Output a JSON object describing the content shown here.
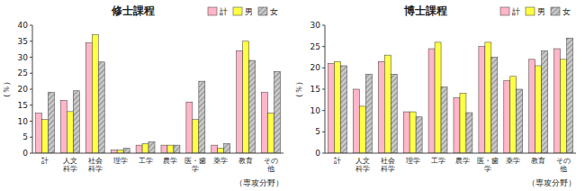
{
  "chart_data": [
    {
      "type": "bar",
      "title": "修士課程",
      "y_label": "（％）",
      "x_label": "（専攻分野）",
      "categories": [
        "計",
        "人文\n科学",
        "社会\n科学",
        "理学",
        "工学",
        "農学",
        "医・歯\n学",
        "薬学",
        "教育",
        "その\n他"
      ],
      "series": [
        {
          "name": "計",
          "color": "#FFB6C8",
          "values": [
            12.5,
            16.5,
            34.5,
            1.0,
            2.5,
            2.5,
            16.0,
            2.5,
            32.0,
            19.0
          ]
        },
        {
          "name": "男",
          "color": "#FFFF44",
          "values": [
            10.5,
            13.0,
            37.0,
            1.0,
            3.0,
            2.5,
            10.5,
            1.5,
            35.0,
            12.5
          ]
        },
        {
          "name": "女",
          "color": "#C8C8C8",
          "values": [
            19.0,
            19.5,
            28.5,
            1.5,
            3.5,
            2.5,
            22.5,
            3.0,
            29.0,
            25.5
          ]
        }
      ],
      "ylim": [
        0,
        40
      ],
      "yticks": [
        0,
        5,
        10,
        15,
        20,
        25,
        30,
        35,
        40
      ],
      "legend": "upper right"
    },
    {
      "type": "bar",
      "title": "博士課程",
      "y_label": "（％）",
      "x_label": "（専攻分野）",
      "categories": [
        "計",
        "人文\n科学",
        "社会\n科学",
        "理学",
        "工学",
        "農学",
        "医・歯\n学",
        "薬学",
        "教育",
        "その\n他"
      ],
      "series": [
        {
          "name": "計",
          "color": "#FFB6C8",
          "values": [
            21.0,
            15.0,
            21.5,
            9.7,
            24.5,
            13.0,
            25.0,
            17.0,
            22.0,
            24.5
          ]
        },
        {
          "name": "男",
          "color": "#FFFF44",
          "values": [
            21.5,
            11.0,
            23.0,
            9.7,
            26.0,
            14.0,
            26.0,
            18.0,
            20.5,
            22.0
          ]
        },
        {
          "name": "女",
          "color": "#C8C8C8",
          "values": [
            20.5,
            18.5,
            18.5,
            8.5,
            15.5,
            9.5,
            22.5,
            15.0,
            24.0,
            27.0
          ]
        }
      ],
      "ylim": [
        0,
        30
      ],
      "yticks": [
        0,
        5,
        10,
        15,
        20,
        25,
        30
      ],
      "legend": "upper right"
    }
  ]
}
